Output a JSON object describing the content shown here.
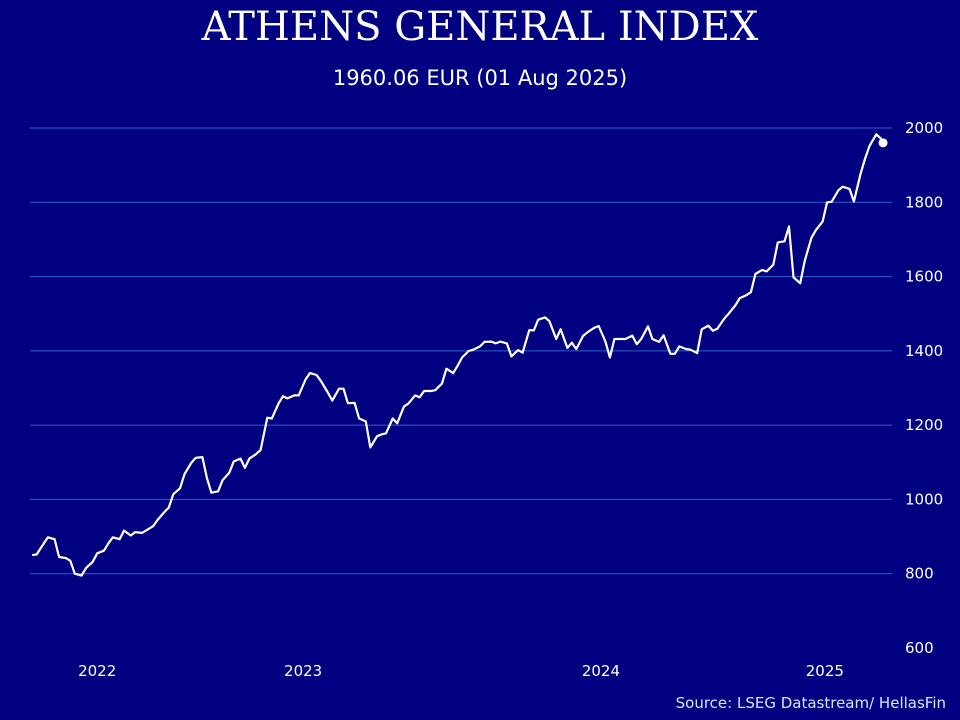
{
  "title": "ATHENS GENERAL INDEX",
  "subtitle": "1960.06 EUR (01 Aug 2025)",
  "source": "Source: LSEG Datastream/ HellasFin",
  "colors": {
    "background": "#000080",
    "line": "#ffffff",
    "grid": "#2a63c9",
    "text": "#ffffff"
  },
  "chart_data": {
    "type": "line",
    "title": "ATHENS GENERAL INDEX",
    "subtitle": "1960.06 EUR (01 Aug 2025)",
    "ylim": [
      600,
      2000
    ],
    "yticks": [
      600,
      800,
      1000,
      1200,
      1400,
      1600,
      1800,
      2000
    ],
    "xlim": [
      2021.55,
      2025.66
    ],
    "xticks": [
      {
        "label": "2022",
        "x": 2021.85
      },
      {
        "label": "2023",
        "x": 2022.77
      },
      {
        "label": "2024",
        "x": 2024.1
      },
      {
        "label": "2025",
        "x": 2025.1
      }
    ],
    "grid": true,
    "y_axis_position": "right",
    "end_marker": {
      "x": 2025.585,
      "y": 1960.06
    },
    "series": [
      {
        "values": [
          [
            2021.56,
            850
          ],
          [
            2021.58,
            852
          ],
          [
            2021.61,
            880
          ],
          [
            2021.63,
            898
          ],
          [
            2021.66,
            893
          ],
          [
            2021.68,
            845
          ],
          [
            2021.71,
            842
          ],
          [
            2021.73,
            835
          ],
          [
            2021.75,
            800
          ],
          [
            2021.78,
            795
          ],
          [
            2021.8,
            815
          ],
          [
            2021.83,
            832
          ],
          [
            2021.85,
            855
          ],
          [
            2021.88,
            862
          ],
          [
            2021.9,
            882
          ],
          [
            2021.92,
            898
          ],
          [
            2021.95,
            893
          ],
          [
            2021.97,
            916
          ],
          [
            2022.0,
            903
          ],
          [
            2022.02,
            912
          ],
          [
            2022.05,
            910
          ],
          [
            2022.07,
            917
          ],
          [
            2022.1,
            928
          ],
          [
            2022.12,
            945
          ],
          [
            2022.15,
            966
          ],
          [
            2022.17,
            978
          ],
          [
            2022.19,
            1014
          ],
          [
            2022.22,
            1030
          ],
          [
            2022.24,
            1068
          ],
          [
            2022.27,
            1098
          ],
          [
            2022.29,
            1112
          ],
          [
            2022.32,
            1114
          ],
          [
            2022.34,
            1058
          ],
          [
            2022.36,
            1018
          ],
          [
            2022.39,
            1022
          ],
          [
            2022.41,
            1052
          ],
          [
            2022.44,
            1072
          ],
          [
            2022.46,
            1102
          ],
          [
            2022.49,
            1110
          ],
          [
            2022.51,
            1085
          ],
          [
            2022.53,
            1110
          ],
          [
            2022.56,
            1122
          ],
          [
            2022.58,
            1133
          ],
          [
            2022.61,
            1220
          ],
          [
            2022.63,
            1218
          ],
          [
            2022.66,
            1258
          ],
          [
            2022.68,
            1278
          ],
          [
            2022.7,
            1272
          ],
          [
            2022.73,
            1280
          ],
          [
            2022.75,
            1280
          ],
          [
            2022.78,
            1322
          ],
          [
            2022.8,
            1340
          ],
          [
            2022.83,
            1335
          ],
          [
            2022.85,
            1318
          ],
          [
            2022.88,
            1288
          ],
          [
            2022.9,
            1266
          ],
          [
            2022.93,
            1298
          ],
          [
            2022.95,
            1298
          ],
          [
            2022.97,
            1259
          ],
          [
            2023.0,
            1260
          ],
          [
            2023.02,
            1218
          ],
          [
            2023.05,
            1210
          ],
          [
            2023.07,
            1140
          ],
          [
            2023.1,
            1170
          ],
          [
            2023.12,
            1175
          ],
          [
            2023.14,
            1178
          ],
          [
            2023.17,
            1218
          ],
          [
            2023.19,
            1205
          ],
          [
            2023.22,
            1250
          ],
          [
            2023.24,
            1258
          ],
          [
            2023.27,
            1280
          ],
          [
            2023.29,
            1275
          ],
          [
            2023.31,
            1292
          ],
          [
            2023.34,
            1292
          ],
          [
            2023.36,
            1294
          ],
          [
            2023.39,
            1312
          ],
          [
            2023.41,
            1352
          ],
          [
            2023.44,
            1340
          ],
          [
            2023.46,
            1360
          ],
          [
            2023.48,
            1382
          ],
          [
            2023.51,
            1400
          ],
          [
            2023.53,
            1403
          ],
          [
            2023.56,
            1412
          ],
          [
            2023.58,
            1424
          ],
          [
            2023.61,
            1425
          ],
          [
            2023.63,
            1420
          ],
          [
            2023.65,
            1425
          ],
          [
            2023.68,
            1420
          ],
          [
            2023.7,
            1385
          ],
          [
            2023.73,
            1402
          ],
          [
            2023.75,
            1395
          ],
          [
            2023.78,
            1456
          ],
          [
            2023.8,
            1455
          ],
          [
            2023.82,
            1484
          ],
          [
            2023.85,
            1490
          ],
          [
            2023.87,
            1480
          ],
          [
            2023.9,
            1432
          ],
          [
            2023.92,
            1458
          ],
          [
            2023.95,
            1408
          ],
          [
            2023.97,
            1422
          ],
          [
            2023.99,
            1405
          ],
          [
            2024.02,
            1440
          ],
          [
            2024.04,
            1450
          ],
          [
            2024.07,
            1462
          ],
          [
            2024.09,
            1467
          ],
          [
            2024.12,
            1425
          ],
          [
            2024.14,
            1382
          ],
          [
            2024.16,
            1432
          ],
          [
            2024.19,
            1432
          ],
          [
            2024.21,
            1432
          ],
          [
            2024.24,
            1441
          ],
          [
            2024.26,
            1418
          ],
          [
            2024.28,
            1432
          ],
          [
            2024.31,
            1466
          ],
          [
            2024.33,
            1432
          ],
          [
            2024.36,
            1424
          ],
          [
            2024.38,
            1442
          ],
          [
            2024.41,
            1392
          ],
          [
            2024.43,
            1392
          ],
          [
            2024.45,
            1412
          ],
          [
            2024.48,
            1405
          ],
          [
            2024.5,
            1403
          ],
          [
            2024.53,
            1394
          ],
          [
            2024.55,
            1458
          ],
          [
            2024.58,
            1468
          ],
          [
            2024.6,
            1454
          ],
          [
            2024.62,
            1460
          ],
          [
            2024.65,
            1486
          ],
          [
            2024.67,
            1500
          ],
          [
            2024.7,
            1522
          ],
          [
            2024.72,
            1542
          ],
          [
            2024.75,
            1550
          ],
          [
            2024.77,
            1558
          ],
          [
            2024.79,
            1607
          ],
          [
            2024.82,
            1618
          ],
          [
            2024.84,
            1614
          ],
          [
            2024.87,
            1632
          ],
          [
            2024.89,
            1692
          ],
          [
            2024.92,
            1695
          ],
          [
            2024.94,
            1735
          ],
          [
            2024.96,
            1598
          ],
          [
            2024.99,
            1582
          ],
          [
            2025.01,
            1642
          ],
          [
            2025.04,
            1704
          ],
          [
            2025.06,
            1725
          ],
          [
            2025.09,
            1748
          ],
          [
            2025.11,
            1800
          ],
          [
            2025.13,
            1801
          ],
          [
            2025.16,
            1832
          ],
          [
            2025.18,
            1842
          ],
          [
            2025.21,
            1836
          ],
          [
            2025.23,
            1802
          ],
          [
            2025.26,
            1878
          ],
          [
            2025.28,
            1918
          ],
          [
            2025.3,
            1952
          ],
          [
            2025.33,
            1983
          ],
          [
            2025.35,
            1972
          ],
          [
            2025.36,
            1960
          ]
        ]
      }
    ]
  }
}
